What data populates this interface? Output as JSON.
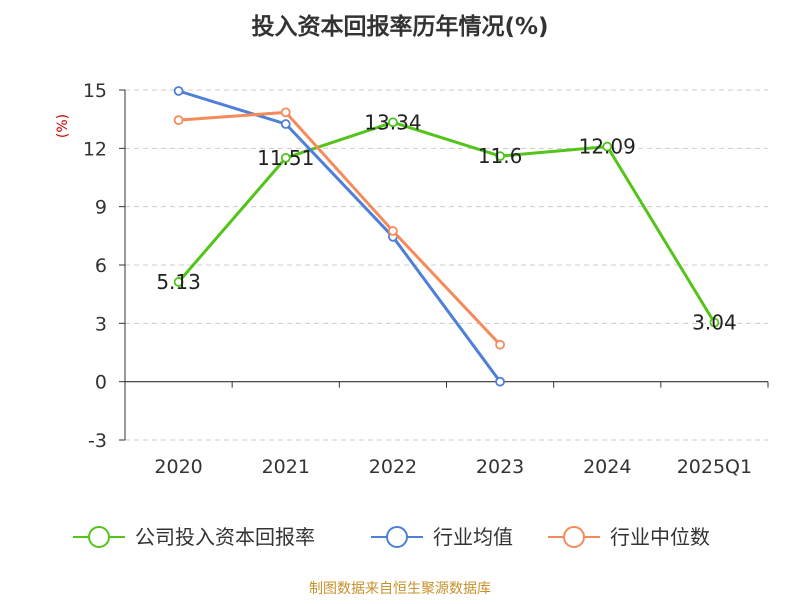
{
  "chart_data": {
    "type": "line",
    "title": "投入资本回报率历年情况(%)",
    "ylabel": "(%)",
    "categories": [
      "2020",
      "2021",
      "2022",
      "2023",
      "2024",
      "2025Q1"
    ],
    "ylim": [
      -3,
      15
    ],
    "yticks": [
      -3,
      0,
      3,
      6,
      9,
      12,
      15
    ],
    "grid": true,
    "legend_position": "bottom",
    "series": [
      {
        "name": "公司投入资本回报率",
        "color": "#52c41a",
        "values": [
          5.13,
          11.51,
          13.34,
          11.6,
          12.09,
          3.04
        ],
        "data_labels": [
          "5.13",
          "11.51",
          "13.34",
          "11.6",
          "12.09",
          "3.04"
        ]
      },
      {
        "name": "行业均值",
        "color": "#4e7fd9",
        "values": [
          14.95,
          13.25,
          7.45,
          0.0,
          null,
          null
        ]
      },
      {
        "name": "行业中位数",
        "color": "#f48b5b",
        "values": [
          13.45,
          13.85,
          7.75,
          1.9,
          null,
          null
        ]
      }
    ]
  },
  "footer": {
    "source": "制图数据来自恒生聚源数据库"
  },
  "colors": {
    "title": "#333333",
    "ylabel": "#cc0000",
    "axis_text": "#333333",
    "grid": "#cccccc",
    "footer": "#c8912c"
  }
}
